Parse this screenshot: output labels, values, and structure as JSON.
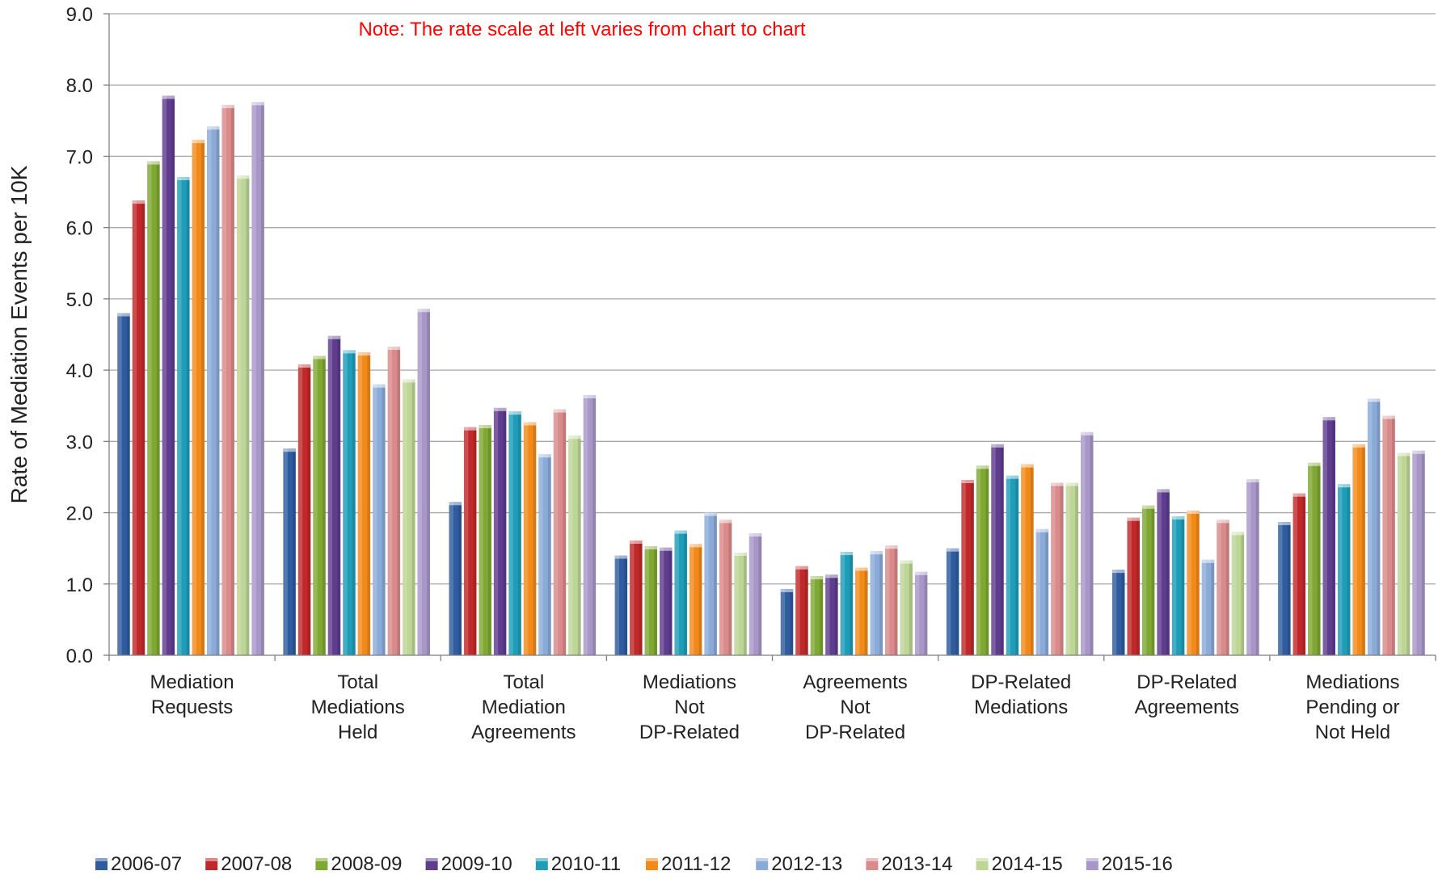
{
  "chart_data": {
    "type": "bar",
    "title": "",
    "note": "Note:  The rate scale at left varies from chart to chart",
    "ylabel": "Rate of Mediation Events per 10K",
    "xlabel": "",
    "ylim": [
      0,
      9
    ],
    "yticks": [
      "0.0",
      "1.0",
      "2.0",
      "3.0",
      "4.0",
      "5.0",
      "6.0",
      "7.0",
      "8.0",
      "9.0"
    ],
    "grid": true,
    "legend_position": "bottom",
    "categories": [
      [
        "Mediation",
        "Requests"
      ],
      [
        "Total",
        "Mediations",
        "Held"
      ],
      [
        "Total",
        "Mediation",
        "Agreements"
      ],
      [
        "Mediations",
        "Not",
        "DP-Related"
      ],
      [
        "Agreements",
        "Not",
        "DP-Related"
      ],
      [
        "DP-Related",
        "Mediations"
      ],
      [
        "DP-Related",
        "Agreements"
      ],
      [
        "Mediations",
        "Pending or",
        "Not Held"
      ]
    ],
    "series": [
      {
        "name": "2006-07",
        "color": "#2E5C9E",
        "values": [
          4.8,
          2.9,
          2.15,
          1.4,
          0.93,
          1.5,
          1.2,
          1.87
        ]
      },
      {
        "name": "2007-08",
        "color": "#C0282A",
        "values": [
          6.38,
          4.08,
          3.2,
          1.61,
          1.25,
          2.46,
          1.93,
          2.27
        ]
      },
      {
        "name": "2008-09",
        "color": "#7FA832",
        "values": [
          6.93,
          4.2,
          3.23,
          1.53,
          1.11,
          2.66,
          2.1,
          2.7
        ]
      },
      {
        "name": "2009-10",
        "color": "#5E3C8E",
        "values": [
          7.85,
          4.48,
          3.47,
          1.51,
          1.13,
          2.96,
          2.33,
          3.34
        ]
      },
      {
        "name": "2010-11",
        "color": "#1E9DB8",
        "values": [
          6.71,
          4.28,
          3.42,
          1.75,
          1.45,
          2.52,
          1.95,
          2.4
        ]
      },
      {
        "name": "2011-12",
        "color": "#F28A1A",
        "values": [
          7.23,
          4.25,
          3.27,
          1.56,
          1.23,
          2.68,
          2.03,
          2.96
        ]
      },
      {
        "name": "2012-13",
        "color": "#8AAAD8",
        "values": [
          7.42,
          3.8,
          2.82,
          2.0,
          1.46,
          1.77,
          1.34,
          3.6
        ]
      },
      {
        "name": "2013-14",
        "color": "#DA8A8A",
        "values": [
          7.72,
          4.33,
          3.45,
          1.9,
          1.54,
          2.42,
          1.9,
          3.36
        ]
      },
      {
        "name": "2014-15",
        "color": "#BDD595",
        "values": [
          6.73,
          3.87,
          3.08,
          1.44,
          1.33,
          2.42,
          1.73,
          2.84
        ]
      },
      {
        "name": "2015-16",
        "color": "#A896C8",
        "values": [
          7.76,
          4.86,
          3.65,
          1.71,
          1.17,
          3.13,
          2.47,
          2.87
        ]
      }
    ]
  }
}
